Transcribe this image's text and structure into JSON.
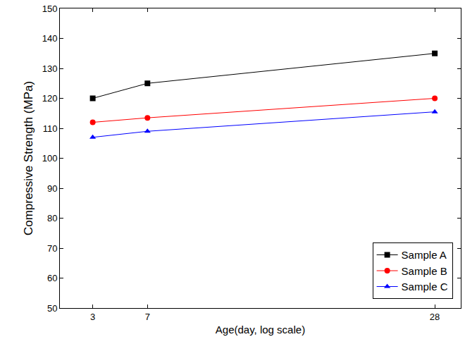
{
  "chart_data": {
    "type": "line",
    "x_label": "Age(day, log scale)",
    "y_label": "Compressive Strength (MPa)",
    "x": [
      3,
      7,
      28
    ],
    "series": [
      {
        "name": "Sample A",
        "color": "#000000",
        "marker": "square",
        "values": [
          120,
          125,
          135
        ]
      },
      {
        "name": "Sample B",
        "color": "#ff0000",
        "marker": "circle",
        "values": [
          112,
          113.5,
          120
        ]
      },
      {
        "name": "Sample C",
        "color": "#0000ff",
        "marker": "triangle-up",
        "values": [
          107,
          109,
          115.5
        ]
      }
    ],
    "xlim": [
      0.6,
      29.9
    ],
    "xticks": [
      3,
      7,
      28
    ],
    "ylim": [
      50,
      150
    ],
    "yticks": [
      50,
      60,
      70,
      80,
      90,
      100,
      110,
      120,
      130,
      140,
      150
    ],
    "grid": false,
    "legend": "bottom-right"
  }
}
